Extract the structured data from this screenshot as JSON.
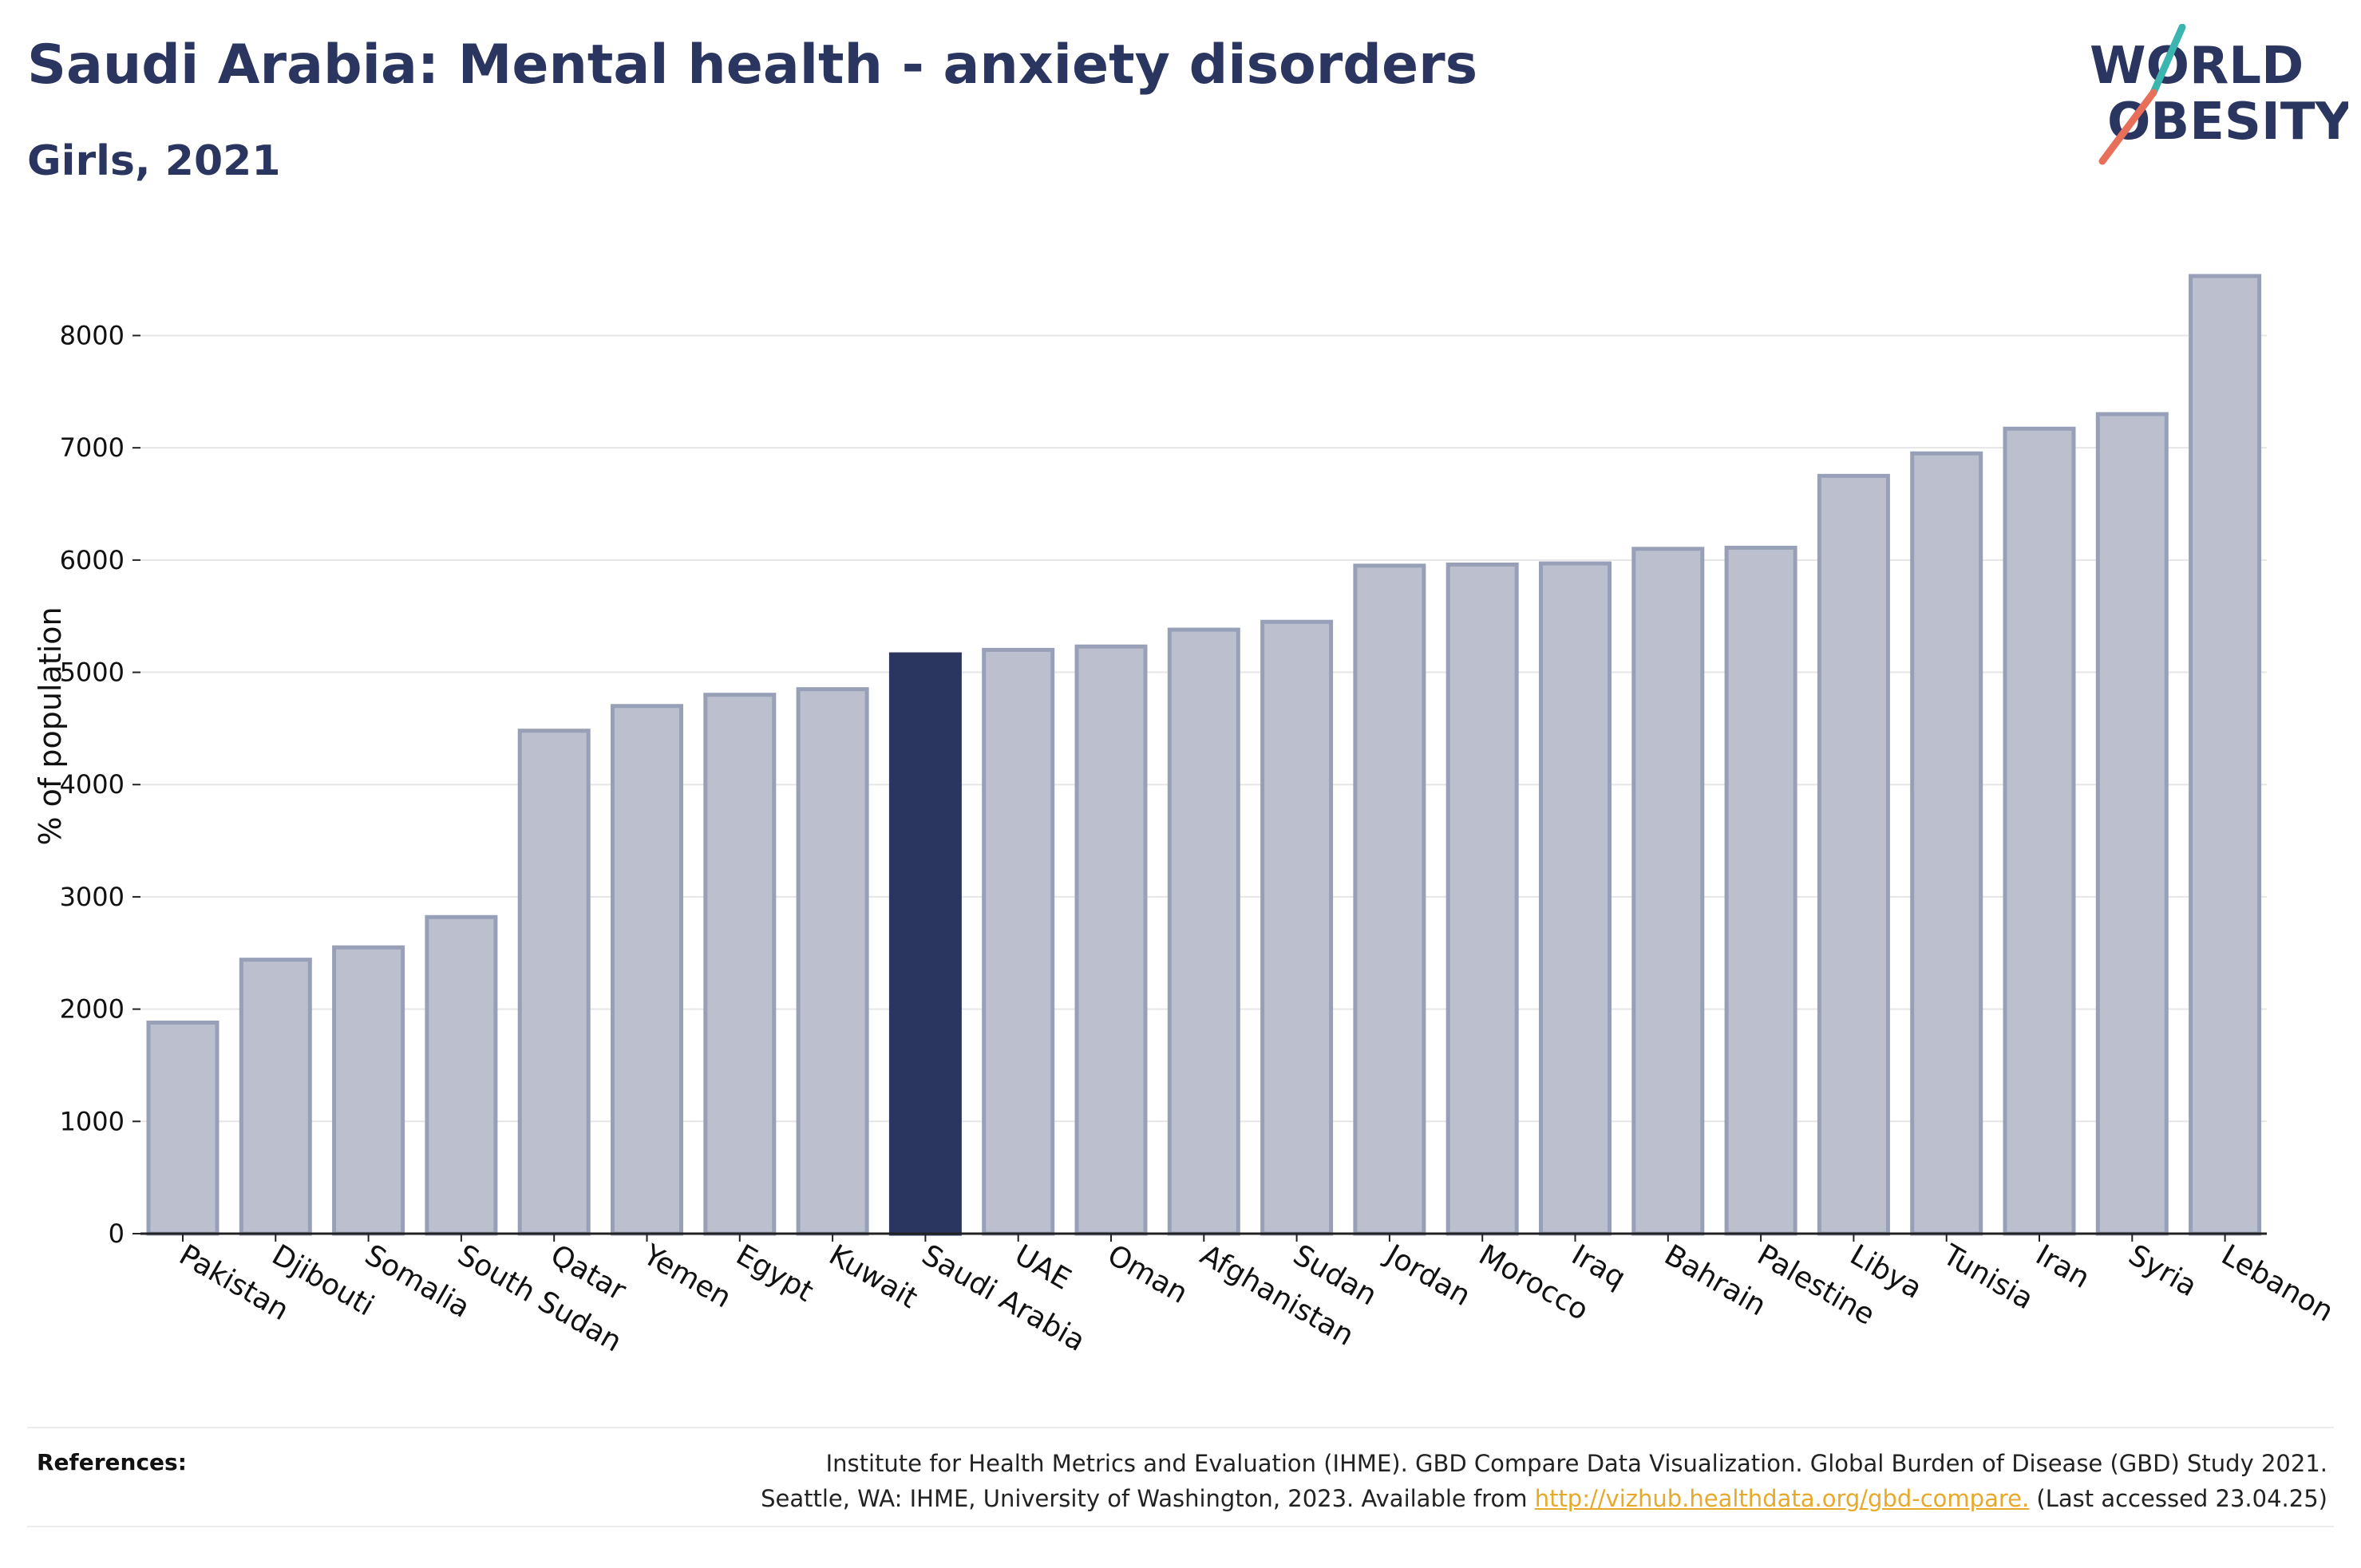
{
  "header": {
    "title": "Saudi Arabia: Mental health - anxiety disorders",
    "subtitle": "Girls, 2021"
  },
  "logo": {
    "line1": "WORLD",
    "line2": "OBESITY",
    "colors": {
      "text": "#2a3560",
      "slash_teal": "#3bb5b0",
      "slash_coral": "#e8705a"
    }
  },
  "chart_data": {
    "type": "bar",
    "ylabel": "% of population",
    "xlabel": "",
    "ylim": [
      0,
      8700
    ],
    "yticks": [
      0,
      1000,
      2000,
      3000,
      4000,
      5000,
      6000,
      7000,
      8000
    ],
    "grid": true,
    "highlight": "Saudi Arabia",
    "colors": {
      "bar": "#bcc0ce",
      "bar_edge": "#98a0b8",
      "highlight": "#2a3560"
    },
    "categories": [
      "Pakistan",
      "Djibouti",
      "Somalia",
      "South Sudan",
      "Qatar",
      "Yemen",
      "Egypt",
      "Kuwait",
      "Saudi Arabia",
      "UAE",
      "Oman",
      "Afghanistan",
      "Sudan",
      "Jordan",
      "Morocco",
      "Iraq",
      "Bahrain",
      "Palestine",
      "Libya",
      "Tunisia",
      "Iran",
      "Syria",
      "Lebanon"
    ],
    "values": [
      1880,
      2440,
      2550,
      2820,
      4480,
      4700,
      4800,
      4850,
      5160,
      5200,
      5230,
      5380,
      5450,
      5950,
      5960,
      5970,
      6100,
      6110,
      6750,
      6950,
      7170,
      7300,
      8530
    ]
  },
  "references": {
    "label": "References:",
    "line1": "Institute for Health Metrics and Evaluation (IHME). GBD Compare Data Visualization. Global Burden of Disease (GBD) Study 2021.",
    "line2_prefix": "Seattle, WA: IHME, University of Washington, 2023. Available from ",
    "link": "http://vizhub.healthdata.org/gbd-compare.",
    "line2_suffix": " (Last accessed 23.04.25)"
  }
}
